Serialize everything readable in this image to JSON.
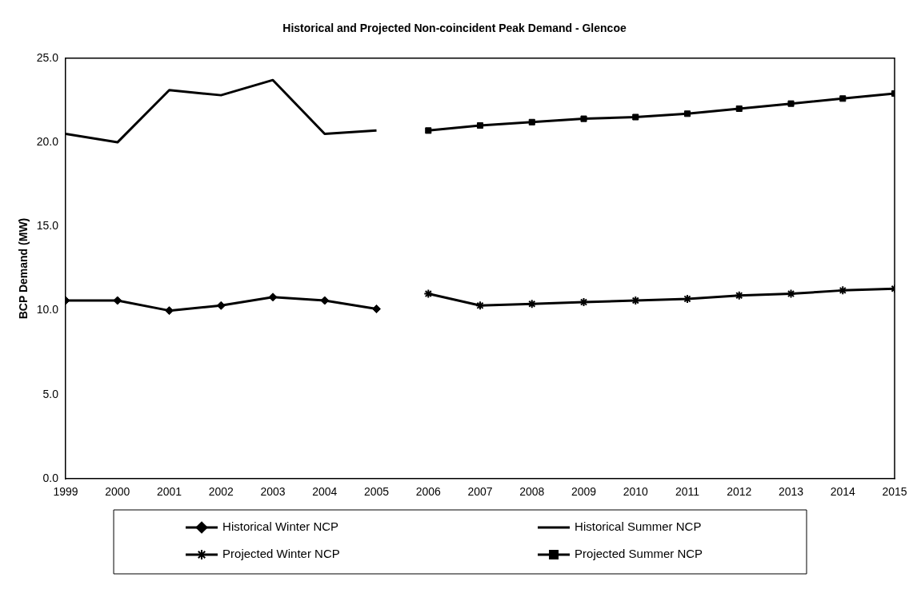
{
  "chart_data": {
    "type": "line",
    "title": "Historical and Projected Non-coincident Peak Demand - Glencoe",
    "ylabel": "BCP Demand (MW)",
    "xlim": [
      1999,
      2015
    ],
    "xticks": [
      1999,
      2000,
      2001,
      2002,
      2003,
      2004,
      2005,
      2006,
      2007,
      2008,
      2009,
      2010,
      2011,
      2012,
      2013,
      2014,
      2015
    ],
    "ylim": [
      0,
      25
    ],
    "yticks": [
      {
        "value": 0,
        "label": "0.0"
      },
      {
        "value": 5,
        "label": "5.0"
      },
      {
        "value": 10,
        "label": "10.0"
      },
      {
        "value": 15,
        "label": "15.0"
      },
      {
        "value": 20,
        "label": "20.0"
      },
      {
        "value": 25,
        "label": "25.0"
      }
    ],
    "grid": false,
    "legend": "bottom",
    "line_style": "solid",
    "series": [
      {
        "name": "Historical Winter NCP",
        "color": "#000000",
        "marker": "diamond",
        "x": [
          1999,
          2000,
          2001,
          2002,
          2003,
          2004,
          2005
        ],
        "values": [
          10.6,
          10.6,
          10.0,
          10.3,
          10.8,
          10.6,
          10.1
        ]
      },
      {
        "name": "Historical Summer NCP",
        "color": "#000000",
        "marker": "none",
        "x": [
          1999,
          2000,
          2001,
          2002,
          2003,
          2004,
          2005
        ],
        "values": [
          20.5,
          20.0,
          23.1,
          22.8,
          23.7,
          20.5,
          20.7
        ]
      },
      {
        "name": "Projected Winter NCP",
        "color": "#000000",
        "marker": "cross",
        "x": [
          2006,
          2007,
          2008,
          2009,
          2010,
          2011,
          2012,
          2013,
          2014,
          2015
        ],
        "values": [
          11.0,
          10.3,
          10.4,
          10.5,
          10.6,
          10.7,
          10.9,
          11.0,
          11.2,
          11.3
        ]
      },
      {
        "name": "Projected Summer NCP",
        "color": "#000000",
        "marker": "square",
        "x": [
          2006,
          2007,
          2008,
          2009,
          2010,
          2011,
          2012,
          2013,
          2014,
          2015
        ],
        "values": [
          20.7,
          21.0,
          21.2,
          21.4,
          21.5,
          21.7,
          22.0,
          22.3,
          22.6,
          22.9
        ]
      }
    ]
  }
}
